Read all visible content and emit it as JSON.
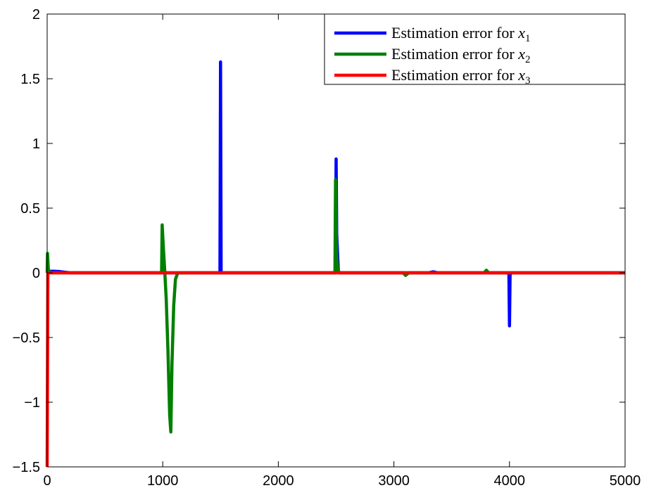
{
  "chart_data": {
    "type": "line",
    "title": "",
    "xlabel": "",
    "ylabel": "",
    "xlim": [
      0,
      5000
    ],
    "ylim": [
      -1.5,
      2
    ],
    "xticks": [
      0,
      1000,
      2000,
      3000,
      4000,
      5000
    ],
    "xtick_labels": [
      "0",
      "1000",
      "2000",
      "3000",
      "4000",
      "5000"
    ],
    "yticks": [
      -1.5,
      -1,
      -0.5,
      0,
      0.5,
      1,
      1.5,
      2
    ],
    "ytick_labels": [
      "−1.5",
      "−1",
      "−0.5",
      "0",
      "0.5",
      "1",
      "1.5",
      "2"
    ],
    "grid": false,
    "legend_position": "top-right",
    "legend_prefix": "Estimation error for ",
    "series": [
      {
        "name": "Estimation error for x1",
        "var": "x",
        "sub": "1",
        "color": "#0000ff",
        "points": [
          [
            0,
            0
          ],
          [
            5,
            0.01
          ],
          [
            50,
            0.012
          ],
          [
            100,
            0.01
          ],
          [
            150,
            0.005
          ],
          [
            200,
            0
          ],
          [
            1495,
            0
          ],
          [
            1500,
            1.63
          ],
          [
            1505,
            0
          ],
          [
            1550,
            0
          ],
          [
            2495,
            0
          ],
          [
            2500,
            0.88
          ],
          [
            2505,
            0.3
          ],
          [
            2520,
            0
          ],
          [
            2600,
            0
          ],
          [
            3300,
            0
          ],
          [
            3340,
            0.008
          ],
          [
            3380,
            0
          ],
          [
            3995,
            0
          ],
          [
            4000,
            -0.41
          ],
          [
            4005,
            -0.02
          ],
          [
            4010,
            0
          ],
          [
            5000,
            0
          ]
        ]
      },
      {
        "name": "Estimation error for x2",
        "var": "x",
        "sub": "2",
        "color": "#008000",
        "points": [
          [
            0,
            0
          ],
          [
            3,
            0.15
          ],
          [
            10,
            0.03
          ],
          [
            20,
            0
          ],
          [
            990,
            0
          ],
          [
            995,
            0.37
          ],
          [
            1005,
            0.2
          ],
          [
            1015,
            0.05
          ],
          [
            1030,
            -0.2
          ],
          [
            1045,
            -0.6
          ],
          [
            1060,
            -1.1
          ],
          [
            1070,
            -1.23
          ],
          [
            1080,
            -0.7
          ],
          [
            1095,
            -0.25
          ],
          [
            1110,
            -0.05
          ],
          [
            1130,
            0
          ],
          [
            2490,
            0
          ],
          [
            2495,
            0.72
          ],
          [
            2505,
            0.12
          ],
          [
            2515,
            0.02
          ],
          [
            2530,
            0
          ],
          [
            3080,
            0
          ],
          [
            3100,
            -0.02
          ],
          [
            3130,
            0
          ],
          [
            3780,
            0
          ],
          [
            3800,
            0.02
          ],
          [
            3820,
            0
          ],
          [
            5000,
            0
          ]
        ]
      },
      {
        "name": "Estimation error for x3",
        "var": "x",
        "sub": "3",
        "color": "#ff0000",
        "points": [
          [
            0,
            -1.5
          ],
          [
            6,
            0
          ],
          [
            5000,
            0
          ]
        ]
      }
    ]
  }
}
